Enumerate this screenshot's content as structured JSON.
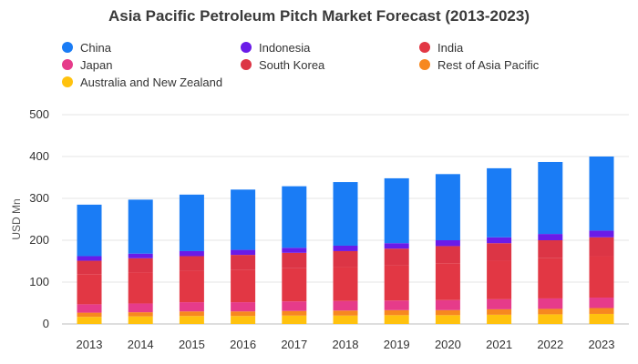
{
  "chart_data": {
    "type": "bar",
    "stacked": true,
    "title": "Asia Pacific Petroleum Pitch Market Forecast (2013-2023)",
    "ylabel": "USD Mn",
    "xlabel": "",
    "ylim": [
      0,
      500
    ],
    "yticks": [
      0,
      100,
      200,
      300,
      400,
      500
    ],
    "grid": true,
    "legend_position": "top",
    "categories": [
      "2013",
      "2014",
      "2015",
      "2016",
      "2017",
      "2018",
      "2019",
      "2020",
      "2021",
      "2022",
      "2023"
    ],
    "series": [
      {
        "name": "Australia and New Zealand",
        "color": "#FFC20E",
        "values": [
          17,
          18,
          19,
          19,
          20,
          20,
          21,
          21,
          22,
          23,
          24
        ]
      },
      {
        "name": "Rest of Asia Pacific",
        "color": "#F7881F",
        "values": [
          10,
          10,
          11,
          11,
          11,
          12,
          12,
          12,
          13,
          13,
          14
        ]
      },
      {
        "name": "Japan",
        "color": "#E63B8A",
        "values": [
          20,
          21,
          22,
          22,
          23,
          23,
          23,
          24,
          24,
          25,
          25
        ]
      },
      {
        "name": "India",
        "color": "#E23744",
        "values": [
          72,
          74,
          75,
          77,
          79,
          81,
          84,
          88,
          92,
          96,
          99
        ]
      },
      {
        "name": "South Korea",
        "color": "#DC3545",
        "values": [
          32,
          34,
          35,
          36,
          37,
          38,
          40,
          41,
          42,
          43,
          45
        ]
      },
      {
        "name": "Indonesia",
        "color": "#6A1BE8",
        "values": [
          11,
          11,
          12,
          12,
          12,
          13,
          13,
          14,
          14,
          15,
          16
        ]
      },
      {
        "name": "China",
        "color": "#1A7CF5",
        "values": [
          123,
          129,
          135,
          144,
          147,
          152,
          155,
          158,
          165,
          172,
          177
        ]
      }
    ],
    "legend_order": [
      "China",
      "Indonesia",
      "India",
      "Japan",
      "South Korea",
      "Rest of Asia Pacific",
      "Australia and New Zealand"
    ]
  }
}
